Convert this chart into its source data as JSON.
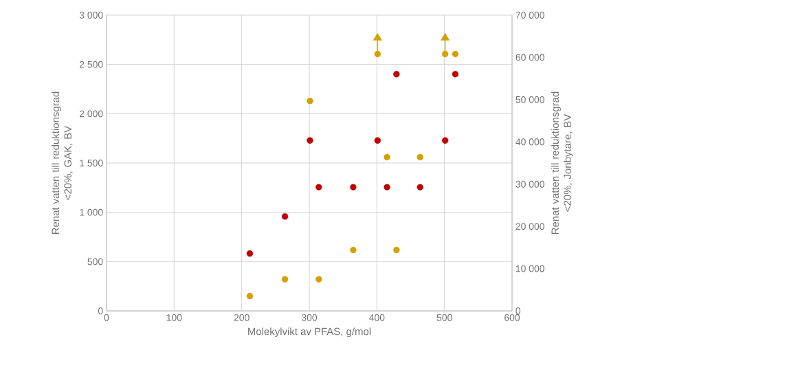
{
  "chart_data": {
    "type": "scatter",
    "xlabel": "Molekylvikt av PFAS, g/mol",
    "ylabel": "Renat vatten till reduktionsgrad <20%, GAK, BV",
    "y2label": "Renat vatten till reduktionsgrad <20%, Jonbytare, BV",
    "xlim": [
      0,
      600
    ],
    "xticks": [
      0,
      100,
      200,
      300,
      400,
      500,
      600
    ],
    "ylim": [
      0,
      3000
    ],
    "yticks": [
      0,
      500,
      {
        "value": 1000,
        "label": "1 000"
      },
      {
        "value": 1500,
        "label": "1 500"
      },
      {
        "value": 2000,
        "label": "2 000"
      },
      {
        "value": 2500,
        "label": "2 500"
      },
      {
        "value": 3000,
        "label": "3 000"
      }
    ],
    "y2lim": [
      0,
      70000
    ],
    "y2ticks": [
      0,
      {
        "value": 10000,
        "label": "10 000"
      },
      {
        "value": 20000,
        "label": "20 000"
      },
      {
        "value": 30000,
        "label": "30 000"
      },
      {
        "value": 40000,
        "label": "40 000"
      },
      {
        "value": 50000,
        "label": "50 000"
      },
      {
        "value": 60000,
        "label": "60 000"
      },
      {
        "value": 70000,
        "label": "70 000"
      }
    ],
    "grid": true,
    "series": [
      {
        "color": "#c00000",
        "x": [
          212,
          264,
          301,
          314,
          365,
          401,
          415,
          429,
          464,
          501,
          516
        ],
        "values": [
          583,
          958,
          1729,
          1255,
          1255,
          1729,
          1255,
          2401,
          1255,
          1729,
          2401
        ]
      },
      {
        "color": "#d4a000",
        "axis": "y2",
        "x": [
          212,
          264,
          301,
          314,
          365,
          401,
          415,
          429,
          464,
          501,
          516
        ],
        "values": [
          3500,
          7500,
          49700,
          7500,
          14400,
          60800,
          36400,
          14400,
          36400,
          60800,
          60800
        ],
        "errors": [
          null,
          null,
          null,
          null,
          null,
          [
            60800,
            64000
          ],
          null,
          null,
          null,
          [
            60800,
            64000
          ],
          null
        ]
      }
    ]
  }
}
